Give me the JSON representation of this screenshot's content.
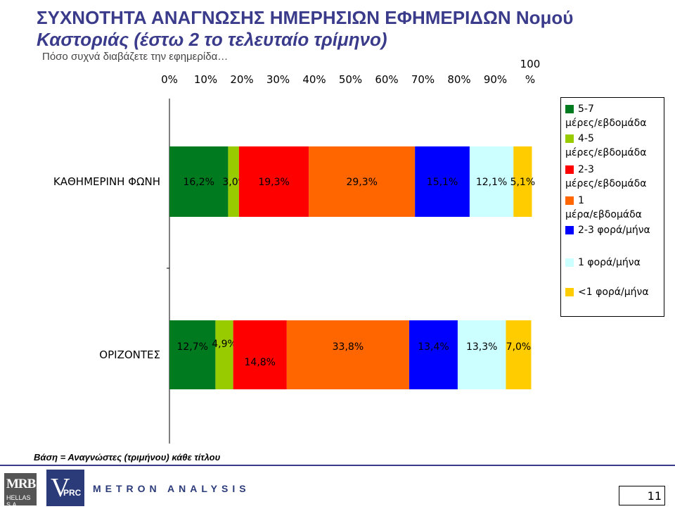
{
  "title": {
    "line1": "ΣΥΧΝΟΤΗΤΑ ΑΝΑΓΝΩΣΗΣ ΗΜΕΡΗΣΙΩΝ ΕΦΗΜΕΡΙΔΩΝ Νομού",
    "line2": "Καστοριάς (έστω 2 το τελευταίο τρίμηνο)"
  },
  "subtitle": "Πόσο συχνά διαβάζετε την εφημερίδα…",
  "chart_data": {
    "type": "bar",
    "orientation": "horizontal",
    "stacked": true,
    "x_ticks": [
      "0%",
      "10%",
      "20%",
      "30%",
      "40%",
      "50%",
      "60%",
      "70%",
      "80%",
      "90%",
      "100%"
    ],
    "x_tick_last_top": "100",
    "x_tick_last_bottom": "%",
    "xlim": [
      0,
      100
    ],
    "grid": false,
    "legend_position": "right",
    "categories": [
      "ΚΑΘΗΜΕΡΙΝΗ ΦΩΝΗ",
      "ΟΡΙΖΟΝΤΕΣ"
    ],
    "series": [
      {
        "name": "5-7 μέρες/εβδομάδα",
        "color": "#007a1f",
        "values": [
          16.2,
          12.7
        ],
        "labels": [
          "16,2%",
          "12,7%"
        ]
      },
      {
        "name": "4-5 μέρες/εβδομάδα",
        "color": "#99cc00",
        "values": [
          3.0,
          4.9
        ],
        "labels": [
          "3,0%",
          "4,9%"
        ]
      },
      {
        "name": "2-3 μέρες/εβδομάδα",
        "color": "#ff0000",
        "values": [
          19.3,
          14.8
        ],
        "labels": [
          "19,3%",
          "14,8%"
        ]
      },
      {
        "name": "1 μέρα/εβδομάδα",
        "color": "#ff6600",
        "values": [
          29.3,
          33.8
        ],
        "labels": [
          "29,3%",
          "33,8%"
        ]
      },
      {
        "name": "2-3 φορά/μήνα",
        "color": "#0000ff",
        "values": [
          15.1,
          13.4
        ],
        "labels": [
          "15,1%",
          "13,4%"
        ]
      },
      {
        "name": "1 φορά/μήνα",
        "color": "#ccffff",
        "values": [
          12.1,
          13.3
        ],
        "labels": [
          "12,1%",
          "13,3%"
        ]
      },
      {
        "name": "<1 φορά/μήνα",
        "color": "#ffcc00",
        "values": [
          5.1,
          7.0
        ],
        "labels": [
          "5,1%",
          "7,0%"
        ]
      }
    ]
  },
  "legend": {
    "items": [
      {
        "line1": "5-7",
        "line2": "μέρες/εβδομάδα",
        "color": "#007a1f"
      },
      {
        "line1": "4-5",
        "line2": "μέρες/εβδομάδα",
        "color": "#99cc00"
      },
      {
        "line1": "2-3",
        "line2": "μέρες/εβδομάδα",
        "color": "#ff0000"
      },
      {
        "line1": "1",
        "line2": "μέρα/εβδομάδα",
        "color": "#ff6600"
      },
      {
        "line1": "2-3 φορά/μήνα",
        "line2": "",
        "color": "#0000ff"
      },
      {
        "line1": "1 φορά/μήνα",
        "line2": "",
        "color": "#ccffff"
      },
      {
        "line1": "<1 φορά/μήνα",
        "line2": "",
        "color": "#ffcc00"
      }
    ]
  },
  "base_note": "Βάση = Αναγνώστες (τριμήνου) κάθε τίτλου",
  "footer": {
    "mrb_big": "MRB",
    "mrb_small": "HELLAS S.A.",
    "vprc_v": "V",
    "vprc_prc": "PRC",
    "metron_1": "METRON",
    "metron_2": "ANALYSIS",
    "page_number": "11"
  }
}
